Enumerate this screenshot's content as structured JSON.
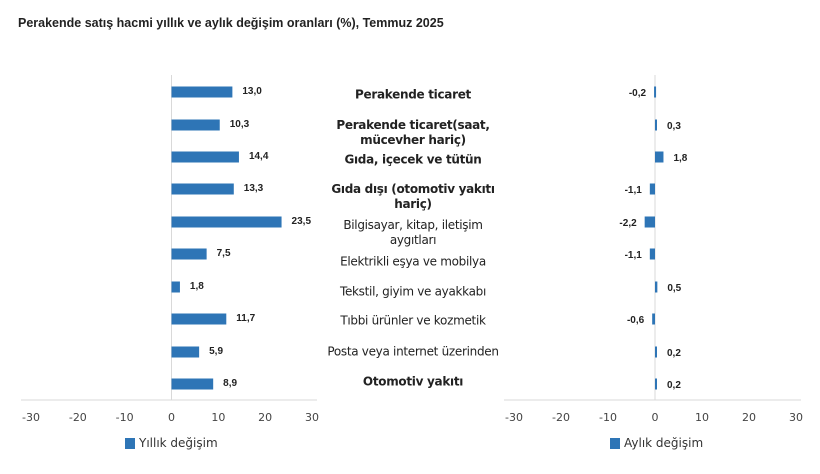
{
  "title": "Perakende satış hacmi yıllık ve aylık değişim oranları (%), Temmuz 2025",
  "chart_data": [
    {
      "type": "bar",
      "orientation": "horizontal",
      "categories": [
        "Perakende ticaret",
        "Perakende ticaret(saat, mücevher hariç)",
        "Gıda, içecek ve tütün",
        "Gıda dışı (otomotiv yakıtı hariç)",
        "Bilgisayar, kitap, iletişim aygıtları",
        "Elektrikli eşya ve mobilya",
        "Tekstil, giyim ve ayakkabı",
        "Tıbbi ürünler ve kozmetik",
        "Posta veya internet üzerinden",
        "Otomotiv yakıtı"
      ],
      "bold_categories": [
        true,
        true,
        true,
        true,
        false,
        false,
        false,
        false,
        false,
        true
      ],
      "series": [
        {
          "name": "Yıllık değişim",
          "values": [
            13.0,
            10.3,
            14.4,
            13.3,
            23.5,
            7.5,
            1.8,
            11.7,
            5.9,
            8.9
          ],
          "labels": [
            "13,0",
            "10,3",
            "14,4",
            "13,3",
            "23,5",
            "7,5",
            "1,8",
            "11,7",
            "5,9",
            "8,9"
          ]
        }
      ],
      "xlim": [
        -30,
        30
      ],
      "xticks": [
        "-30",
        "-20",
        "-10",
        "0",
        "10",
        "20",
        "30"
      ],
      "legend": "bottom",
      "color": "#2e75b6"
    },
    {
      "type": "bar",
      "orientation": "horizontal",
      "categories": [
        "Perakende ticaret",
        "Perakende ticaret(saat, mücevher hariç)",
        "Gıda, içecek ve tütün",
        "Gıda dışı (otomotiv yakıtı hariç)",
        "Bilgisayar, kitap, iletişim aygıtları",
        "Elektrikli eşya ve mobilya",
        "Tekstil, giyim ve ayakkabı",
        "Tıbbi ürünler ve kozmetik",
        "Posta veya internet üzerinden",
        "Otomotiv yakıtı"
      ],
      "series": [
        {
          "name": "Aylık değişim",
          "values": [
            -0.2,
            0.3,
            1.8,
            -1.1,
            -2.2,
            -1.1,
            0.5,
            -0.6,
            0.2,
            0.2
          ],
          "labels": [
            "-0,2",
            "0,3",
            "1,8",
            "-1,1",
            "-2,2",
            "-1,1",
            "0,5",
            "-0,6",
            "0,2",
            "0,2"
          ]
        }
      ],
      "xlim": [
        -30,
        30
      ],
      "xticks": [
        "-30",
        "-20",
        "-10",
        "0",
        "10",
        "20",
        "30"
      ],
      "legend": "bottom",
      "color": "#2e75b6"
    }
  ]
}
